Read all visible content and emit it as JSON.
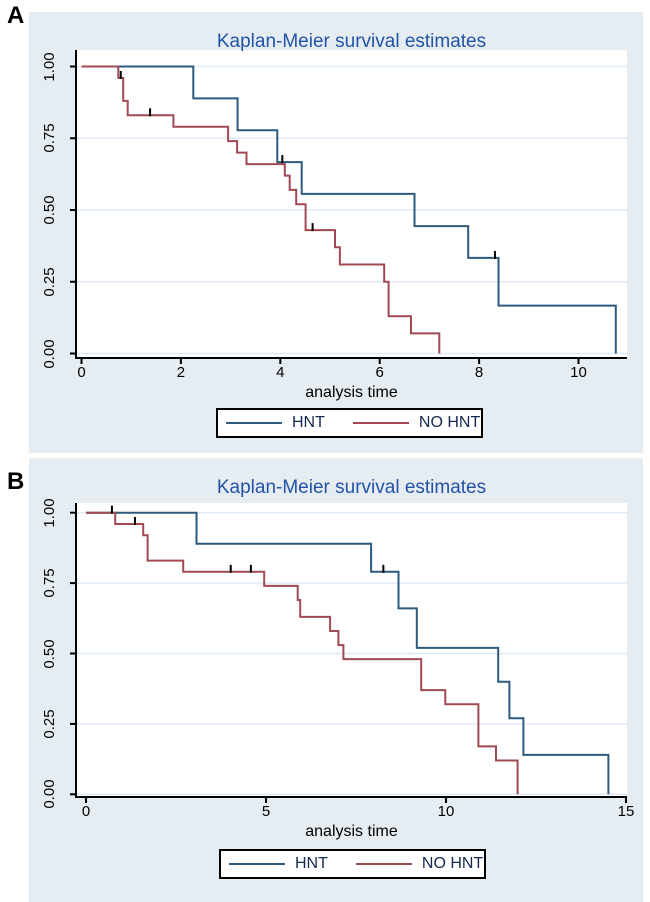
{
  "page": {
    "panel_labels": [
      "A",
      "B"
    ]
  },
  "colors": {
    "hnt_line": "#2e5a7d",
    "no_hnt_line": "#a14a52",
    "censor_tick": "#000000",
    "card_background": "#e5edf3",
    "plot_background": "#ffffff",
    "gridline": "#dfeaf6",
    "axis": "#000000",
    "title_text": "#2353a4",
    "legend_text": "#16294e"
  },
  "chart_data": [
    {
      "id": "A",
      "type": "line",
      "subtype": "kaplan-meier-step",
      "title": "Kaplan-Meier survival estimates",
      "xlabel": "analysis time",
      "x_ticks": [
        0,
        2,
        4,
        6,
        8,
        10
      ],
      "xlim": [
        0,
        10.97
      ],
      "y_tick_labels": [
        "1.00",
        "0.75",
        "0.50",
        "0.25",
        "0.00"
      ],
      "y_tick_values": [
        1.0,
        0.75,
        0.5,
        0.25,
        0.0
      ],
      "ylim": [
        0,
        1
      ],
      "grid": "horizontal",
      "legend_position": "bottom",
      "legend": [
        "HNT",
        "NO HNT"
      ],
      "series": [
        {
          "name": "HNT",
          "color_key": "hnt_line",
          "start": [
            0,
            1.0
          ],
          "steps": [
            [
              2.25,
              0.889
            ],
            [
              3.14,
              0.778
            ],
            [
              3.94,
              0.667
            ],
            [
              4.43,
              0.556
            ],
            [
              6.7,
              0.444
            ],
            [
              7.78,
              0.333
            ],
            [
              8.39,
              0.167
            ],
            [
              10.75,
              0.0
            ]
          ],
          "censored": [
            [
              4.04,
              0.667
            ],
            [
              8.32,
              0.333
            ]
          ]
        },
        {
          "name": "NO HNT",
          "color_key": "no_hnt_line",
          "start": [
            0,
            1.0
          ],
          "steps": [
            [
              0.74,
              0.96
            ],
            [
              0.84,
              0.88
            ],
            [
              0.93,
              0.83
            ],
            [
              1.85,
              0.79
            ],
            [
              2.95,
              0.74
            ],
            [
              3.13,
              0.7
            ],
            [
              3.32,
              0.66
            ],
            [
              4.09,
              0.62
            ],
            [
              4.19,
              0.57
            ],
            [
              4.32,
              0.52
            ],
            [
              4.51,
              0.43
            ],
            [
              5.1,
              0.37
            ],
            [
              5.2,
              0.31
            ],
            [
              6.09,
              0.25
            ],
            [
              6.18,
              0.13
            ],
            [
              6.63,
              0.07
            ],
            [
              7.2,
              0.0
            ]
          ],
          "censored": [
            [
              0.79,
              0.96
            ],
            [
              1.38,
              0.83
            ],
            [
              4.65,
              0.43
            ]
          ]
        }
      ]
    },
    {
      "id": "B",
      "type": "line",
      "subtype": "kaplan-meier-step",
      "title": "Kaplan-Meier survival estimates",
      "xlabel": "analysis time",
      "x_ticks": [
        0,
        5,
        10,
        15
      ],
      "xlim": [
        0,
        15.03
      ],
      "y_tick_labels": [
        "1.00",
        "0.75",
        "0.50",
        "0.25",
        "0.00"
      ],
      "y_tick_values": [
        1.0,
        0.75,
        0.5,
        0.25,
        0.0
      ],
      "ylim": [
        0,
        1
      ],
      "grid": "horizontal",
      "legend_position": "bottom",
      "legend": [
        "HNT",
        "NO HNT"
      ],
      "series": [
        {
          "name": "HNT",
          "color_key": "hnt_line",
          "start": [
            0,
            1.0
          ],
          "steps": [
            [
              3.07,
              0.89
            ],
            [
              7.92,
              0.79
            ],
            [
              8.68,
              0.66
            ],
            [
              9.19,
              0.52
            ],
            [
              11.45,
              0.4
            ],
            [
              11.76,
              0.27
            ],
            [
              12.15,
              0.14
            ],
            [
              14.51,
              0.0
            ]
          ],
          "censored": [
            [
              0.72,
              1.0
            ],
            [
              8.26,
              0.79
            ]
          ]
        },
        {
          "name": "NO HNT",
          "color_key": "no_hnt_line",
          "start": [
            0,
            1.0
          ],
          "steps": [
            [
              0.81,
              0.96
            ],
            [
              1.59,
              0.92
            ],
            [
              1.71,
              0.83
            ],
            [
              2.7,
              0.79
            ],
            [
              4.95,
              0.74
            ],
            [
              5.88,
              0.69
            ],
            [
              5.95,
              0.63
            ],
            [
              6.78,
              0.58
            ],
            [
              7.01,
              0.53
            ],
            [
              7.15,
              0.48
            ],
            [
              9.31,
              0.37
            ],
            [
              9.98,
              0.32
            ],
            [
              10.9,
              0.17
            ],
            [
              11.39,
              0.12
            ],
            [
              11.99,
              0.0
            ]
          ],
          "censored": [
            [
              1.36,
              0.96
            ],
            [
              4.02,
              0.79
            ],
            [
              4.58,
              0.79
            ]
          ]
        }
      ]
    }
  ]
}
